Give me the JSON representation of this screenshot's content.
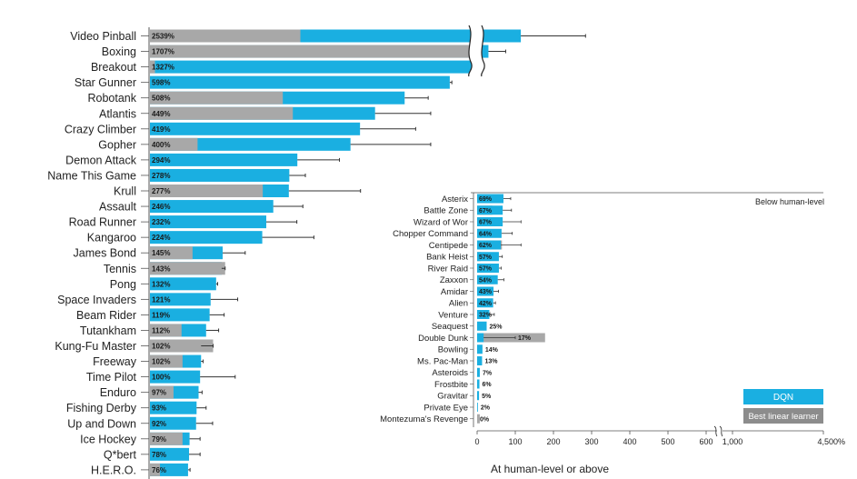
{
  "chart_data": {
    "type": "bar",
    "title": "",
    "xlabel": "At human-level or above",
    "ylabel": "",
    "colors": {
      "dqn": "#1aafe1",
      "linear": "#a8a8a8",
      "error": "#333333",
      "axis": "#555555"
    },
    "legend": [
      {
        "name": "DQN",
        "color": "#1aafe1"
      },
      {
        "name": "Best linear learner",
        "color": "#8c8c8c"
      }
    ],
    "top_panel": {
      "axis_max": 600,
      "break_after": 600,
      "series_order": [
        "dqn",
        "linear"
      ],
      "games": [
        {
          "name": "Video Pinball",
          "label": "2539%",
          "dqn": 2539,
          "linear": 300,
          "err_hi": 4200
        },
        {
          "name": "Boxing",
          "label": "1707%",
          "dqn": 1707,
          "linear": 1300,
          "err_hi": 2150
        },
        {
          "name": "Breakout",
          "label": "1327%",
          "dqn": 1327,
          "linear": 10,
          "err_hi": 1600
        },
        {
          "name": "Star Gunner",
          "label": "598%",
          "dqn": 598,
          "linear": 0,
          "err_hi": 635
        },
        {
          "name": "Robotank",
          "label": "508%",
          "dqn": 508,
          "linear": 265,
          "err_hi": 555
        },
        {
          "name": "Atlantis",
          "label": "449%",
          "dqn": 449,
          "linear": 285,
          "err_hi": 560
        },
        {
          "name": "Crazy Climber",
          "label": "419%",
          "dqn": 419,
          "linear": 0,
          "err_hi": 530
        },
        {
          "name": "Gopher",
          "label": "400%",
          "dqn": 400,
          "linear": 95,
          "err_hi": 560
        },
        {
          "name": "Demon Attack",
          "label": "294%",
          "dqn": 294,
          "linear": 0,
          "err_hi": 378
        },
        {
          "name": "Name This Game",
          "label": "278%",
          "dqn": 278,
          "linear": 0,
          "err_hi": 310
        },
        {
          "name": "Krull",
          "label": "277%",
          "dqn": 277,
          "linear": 225,
          "err_hi": 420
        },
        {
          "name": "Assault",
          "label": "246%",
          "dqn": 246,
          "linear": 0,
          "err_hi": 305
        },
        {
          "name": "Road Runner",
          "label": "232%",
          "dqn": 232,
          "linear": 0,
          "err_hi": 293
        },
        {
          "name": "Kangaroo",
          "label": "224%",
          "dqn": 224,
          "linear": 0,
          "err_hi": 327
        },
        {
          "name": "James Bond",
          "label": "145%",
          "dqn": 145,
          "linear": 85,
          "err_hi": 190
        },
        {
          "name": "Tennis",
          "label": "143%",
          "dqn": 143,
          "linear": 150,
          "err_hi": 150
        },
        {
          "name": "Pong",
          "label": "132%",
          "dqn": 132,
          "linear": 0,
          "err_hi": 135
        },
        {
          "name": "Space Invaders",
          "label": "121%",
          "dqn": 121,
          "linear": 0,
          "err_hi": 175
        },
        {
          "name": "Beam Rider",
          "label": "119%",
          "dqn": 119,
          "linear": 0,
          "err_hi": 148
        },
        {
          "name": "Tutankham",
          "label": "112%",
          "dqn": 112,
          "linear": 63,
          "err_hi": 137
        },
        {
          "name": "Kung-Fu Master",
          "label": "102%",
          "dqn": 102,
          "linear": 126,
          "err_hi": 126
        },
        {
          "name": "Freeway",
          "label": "102%",
          "dqn": 102,
          "linear": 65,
          "err_hi": 106
        },
        {
          "name": "Time Pilot",
          "label": "100%",
          "dqn": 100,
          "linear": 0,
          "err_hi": 170
        },
        {
          "name": "Enduro",
          "label": "97%",
          "dqn": 97,
          "linear": 47,
          "err_hi": 104
        },
        {
          "name": "Fishing Derby",
          "label": "93%",
          "dqn": 93,
          "linear": 0,
          "err_hi": 112
        },
        {
          "name": "Up and Down",
          "label": "92%",
          "dqn": 92,
          "linear": 0,
          "err_hi": 125
        },
        {
          "name": "Ice Hockey",
          "label": "79%",
          "dqn": 79,
          "linear": 65,
          "err_hi": 100
        },
        {
          "name": "Q*bert",
          "label": "78%",
          "dqn": 78,
          "linear": 0,
          "err_hi": 100
        },
        {
          "name": "H.E.R.O.",
          "label": "76%",
          "dqn": 76,
          "linear": 20,
          "err_hi": 80
        }
      ]
    },
    "bottom_panel": {
      "label": "Below human-level",
      "series_order": [
        "linear",
        "dqn"
      ],
      "xticks": [
        "0",
        "100",
        "200",
        "300",
        "400",
        "500",
        "600",
        "1,000",
        "4,500%"
      ],
      "games": [
        {
          "name": "Asterix",
          "label": "69%",
          "dqn": 69,
          "linear": 0,
          "err_hi": 88
        },
        {
          "name": "Battle Zone",
          "label": "67%",
          "dqn": 67,
          "linear": 40,
          "err_hi": 90
        },
        {
          "name": "Wizard of Wor",
          "label": "67%",
          "dqn": 67,
          "linear": 30,
          "err_hi": 115
        },
        {
          "name": "Chopper Command",
          "label": "64%",
          "dqn": 64,
          "linear": 0,
          "err_hi": 92
        },
        {
          "name": "Centipede",
          "label": "62%",
          "dqn": 62,
          "linear": 65,
          "err_hi": 115
        },
        {
          "name": "Bank Heist",
          "label": "57%",
          "dqn": 57,
          "linear": 10,
          "err_hi": 66
        },
        {
          "name": "River Raid",
          "label": "57%",
          "dqn": 57,
          "linear": 0,
          "err_hi": 63
        },
        {
          "name": "Zaxxon",
          "label": "54%",
          "dqn": 54,
          "linear": 0,
          "err_hi": 70
        },
        {
          "name": "Amidar",
          "label": "43%",
          "dqn": 43,
          "linear": 0,
          "err_hi": 56
        },
        {
          "name": "Alien",
          "label": "42%",
          "dqn": 42,
          "linear": 0,
          "err_hi": 48
        },
        {
          "name": "Venture",
          "label": "32%",
          "dqn": 32,
          "linear": 0,
          "err_hi": 45
        },
        {
          "name": "Seaquest",
          "label": "25%",
          "dqn": 25,
          "linear": 0,
          "err_hi": 25
        },
        {
          "name": "Double Dunk",
          "label": "17%",
          "dqn": 17,
          "linear": 178,
          "err_hi": 100
        },
        {
          "name": "Bowling",
          "label": "14%",
          "dqn": 14,
          "linear": 0,
          "err_hi": 14
        },
        {
          "name": "Ms. Pac-Man",
          "label": "13%",
          "dqn": 13,
          "linear": 0,
          "err_hi": 13
        },
        {
          "name": "Asteroids",
          "label": "7%",
          "dqn": 7,
          "linear": 0,
          "err_hi": 7
        },
        {
          "name": "Frostbite",
          "label": "6%",
          "dqn": 6,
          "linear": 0,
          "err_hi": 6
        },
        {
          "name": "Gravitar",
          "label": "5%",
          "dqn": 5,
          "linear": 0,
          "err_hi": 5
        },
        {
          "name": "Private Eye",
          "label": "2%",
          "dqn": 2,
          "linear": 0,
          "err_hi": 2
        },
        {
          "name": "Montezuma's Revenge",
          "label": "0%",
          "dqn": 0,
          "linear": 7,
          "err_hi": 0
        }
      ]
    }
  }
}
